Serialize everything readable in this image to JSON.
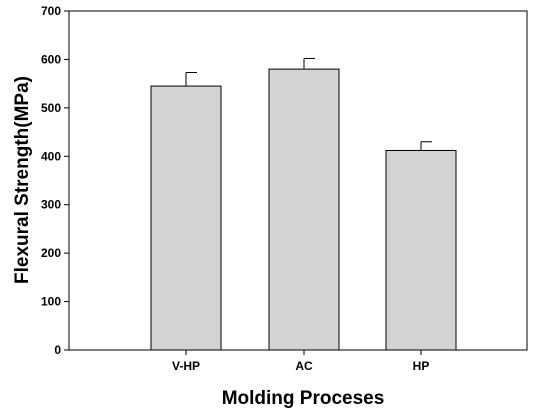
{
  "chart_data": {
    "type": "bar",
    "title": "",
    "xlabel": "Molding Proceses",
    "ylabel": "Flexural Strength(MPa)",
    "categories": [
      "V-HP",
      "AC",
      "HP"
    ],
    "values": [
      545,
      580,
      412
    ],
    "error_bars": [
      28,
      22,
      18
    ],
    "ylim": [
      0,
      700
    ],
    "yticks": [
      0,
      100,
      200,
      300,
      400,
      500,
      600,
      700
    ],
    "grid": false,
    "legend": "none",
    "bar_color": "#d3d3d3",
    "edge_color": "#000000"
  }
}
